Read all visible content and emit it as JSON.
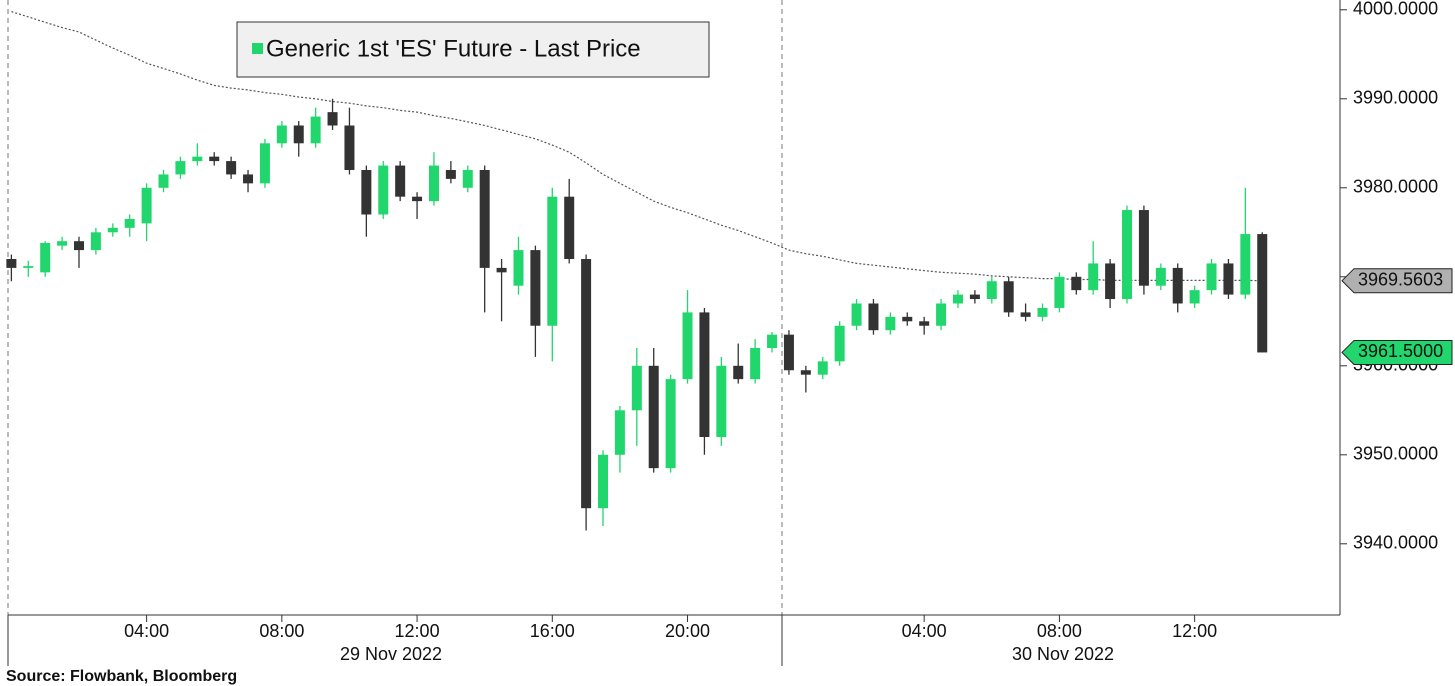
{
  "chart_data": {
    "type": "candlestick",
    "legend": "Generic 1st 'ES' Future - Last Price",
    "source": "Source: Flowbank, Bloomberg",
    "date_labels": [
      "29 Nov 2022",
      "30 Nov 2022"
    ],
    "up_color": "#22d66e",
    "down_color": "#333333",
    "categories": [
      null,
      null,
      null,
      null,
      null,
      null,
      null,
      null,
      "04:00",
      null,
      null,
      null,
      null,
      null,
      null,
      null,
      "08:00",
      null,
      null,
      null,
      null,
      null,
      null,
      null,
      "12:00",
      null,
      null,
      null,
      null,
      null,
      null,
      null,
      "16:00",
      null,
      null,
      null,
      null,
      null,
      null,
      null,
      "20:00",
      null,
      null,
      null,
      null,
      null,
      null,
      null,
      null,
      null,
      null,
      null,
      null,
      null,
      "04:00",
      null,
      null,
      null,
      null,
      null,
      null,
      null,
      "08:00",
      null,
      null,
      null,
      null,
      null,
      null,
      null,
      "12:00",
      null,
      null,
      null,
      null
    ],
    "open": [
      3972,
      3971,
      3970.5,
      3973.5,
      3974,
      3973,
      3975,
      3975.5,
      3976,
      3980,
      3981.5,
      3983,
      3983.5,
      3983,
      3981.5,
      3980.5,
      3985,
      3987,
      3985,
      3988.5,
      3987,
      3982,
      3977,
      3982.5,
      3979,
      3978.5,
      3982,
      3980,
      3982,
      3971,
      3969,
      3973,
      3964.5,
      3979,
      3972,
      3944,
      3950,
      3955,
      3960,
      3948.5,
      3958.5,
      3966,
      3952,
      3960,
      3958.5,
      3962,
      3963.5,
      3959.5,
      3959,
      3960.5,
      3964.5,
      3967,
      3964,
      3965.5,
      3965,
      3964.5,
      3967,
      3968,
      3967.5,
      3969.5,
      3966,
      3965.5,
      3966.5,
      3970,
      3968.5,
      3971.5,
      3967.5,
      3977.5,
      3969,
      3971,
      3967,
      3968.5,
      3971.5,
      3968,
      3974.8
    ],
    "high": [
      3972.5,
      3971.8,
      3974,
      3974.5,
      3974.5,
      3975.5,
      3976,
      3977,
      3980.5,
      3982,
      3983.5,
      3985,
      3984,
      3983.5,
      3982,
      3985.5,
      3987.5,
      3987.5,
      3989,
      3990,
      3989,
      3982.5,
      3983,
      3983,
      3979.5,
      3984,
      3983,
      3982.5,
      3982.5,
      3972,
      3974.5,
      3973.5,
      3980,
      3981,
      3972.5,
      3950.5,
      3955.5,
      3962,
      3962,
      3959,
      3968.5,
      3966.5,
      3961,
      3962.5,
      3963,
      3963.8,
      3964,
      3960,
      3961,
      3965,
      3967.5,
      3967.5,
      3966,
      3966,
      3965.5,
      3967.5,
      3968.5,
      3968.5,
      3970,
      3970,
      3967,
      3967,
      3970.5,
      3970.5,
      3974,
      3972,
      3978,
      3978,
      3971.5,
      3971.5,
      3969,
      3972,
      3972,
      3980,
      3975
    ],
    "low": [
      3969.5,
      3970,
      3970,
      3973,
      3971,
      3972.5,
      3974.5,
      3974.5,
      3974,
      3979.5,
      3981,
      3982.5,
      3982.5,
      3981,
      3979.5,
      3980,
      3984.5,
      3983.5,
      3984.5,
      3986.5,
      3981.5,
      3974.5,
      3976.5,
      3978.5,
      3976.5,
      3978,
      3980.5,
      3979.5,
      3966,
      3965,
      3968,
      3961,
      3960.5,
      3971.5,
      3941.5,
      3942,
      3948,
      3951,
      3948,
      3948,
      3958,
      3950,
      3951,
      3958,
      3958,
      3961.5,
      3959,
      3957,
      3958.5,
      3960,
      3964,
      3963.5,
      3963.5,
      3964.5,
      3963.5,
      3964,
      3966.5,
      3967,
      3967,
      3965.5,
      3965,
      3965,
      3966,
      3968,
      3968,
      3966.5,
      3967,
      3968,
      3968.5,
      3966,
      3966.5,
      3968,
      3967.5,
      3967.5,
      3961.5
    ],
    "close": [
      3971,
      3971.2,
      3973.8,
      3974,
      3973,
      3975,
      3975.5,
      3976.5,
      3980,
      3981.5,
      3983,
      3983.5,
      3983,
      3981.5,
      3980.5,
      3985,
      3987,
      3985,
      3988,
      3987,
      3982,
      3977,
      3982.5,
      3979,
      3978.5,
      3982.5,
      3981,
      3982,
      3971,
      3970.5,
      3973,
      3964.5,
      3979,
      3972,
      3944,
      3950,
      3955,
      3960,
      3948.5,
      3958.5,
      3966,
      3952,
      3960,
      3958.5,
      3962,
      3963.5,
      3959.5,
      3959,
      3960.5,
      3964.5,
      3967,
      3964,
      3965.5,
      3965,
      3964.5,
      3967,
      3968,
      3967.5,
      3969.5,
      3966,
      3965.5,
      3966.5,
      3970,
      3968.5,
      3971.5,
      3967.5,
      3977.5,
      3969,
      3971,
      3967,
      3968.5,
      3971.5,
      3968,
      3974.8,
      3961.5
    ],
    "last_close_label": "3961.5000",
    "moving_average": {
      "color": "#555555",
      "last_value_label": "3969.5603",
      "values": [
        3999.8,
        3999.2,
        3998.6,
        3998.0,
        3997.5,
        3996.6,
        3995.7,
        3994.9,
        3994.0,
        3993.4,
        3992.8,
        3992.1,
        3991.5,
        3991.2,
        3991.0,
        3990.7,
        3990.5,
        3990.2,
        3990.0,
        3989.7,
        3989.5,
        3989.2,
        3989.0,
        3988.7,
        3988.5,
        3988.1,
        3987.8,
        3987.4,
        3987.0,
        3986.5,
        3986.0,
        3985.5,
        3984.8,
        3984.0,
        3982.8,
        3981.5,
        3980.5,
        3979.5,
        3978.5,
        3977.8,
        3977.2,
        3976.5,
        3975.8,
        3975.2,
        3974.5,
        3973.8,
        3973.0,
        3972.6,
        3972.3,
        3971.9,
        3971.5,
        3971.3,
        3971.1,
        3970.9,
        3970.7,
        3970.5,
        3970.4,
        3970.3,
        3970.1,
        3970.0,
        3969.9,
        3969.8,
        3969.8,
        3969.7,
        3969.7,
        3969.6,
        3969.6,
        3969.6,
        3969.6,
        3969.6,
        3969.6,
        3969.6,
        3969.6,
        3969.6,
        3969.5603
      ]
    },
    "xlim": [
      -0.2,
      78.6
    ],
    "ylim": [
      3932,
      4001.1
    ],
    "yticks": [
      {
        "value": 3940,
        "label": "3940.0000"
      },
      {
        "value": 3950,
        "label": "3950.0000"
      },
      {
        "value": 3960,
        "label": "3960.0000"
      },
      {
        "value": 3970,
        "label": "3970.0000"
      },
      {
        "value": 3980,
        "label": "3980.0000"
      },
      {
        "value": 3990,
        "label": "3990.0000"
      },
      {
        "value": 4000,
        "label": "4000.0000"
      }
    ]
  }
}
